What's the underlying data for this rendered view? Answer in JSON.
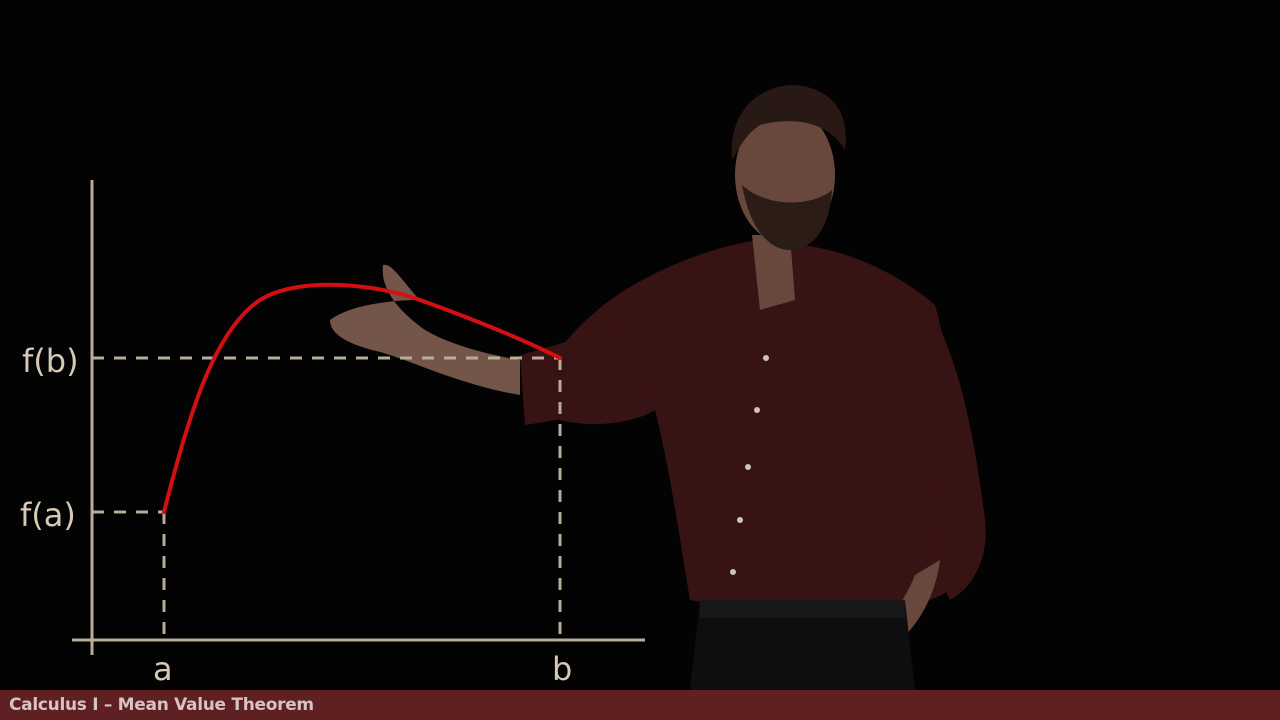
{
  "lecture": {
    "title": "Calculus I – Mean Value Theorem"
  },
  "graph": {
    "labels": {
      "fa": "f(a)",
      "fb": "f(b)",
      "a": "a",
      "b": "b"
    },
    "colors": {
      "axes": "#b9ad96",
      "curve": "#d40f14",
      "guides": "#b9ad96",
      "text": "#d6cab4"
    }
  },
  "colors": {
    "background": "#030303",
    "title_bar": "#5e2020",
    "title_text": "#d7c3c3",
    "shirt": "#3b1414"
  }
}
